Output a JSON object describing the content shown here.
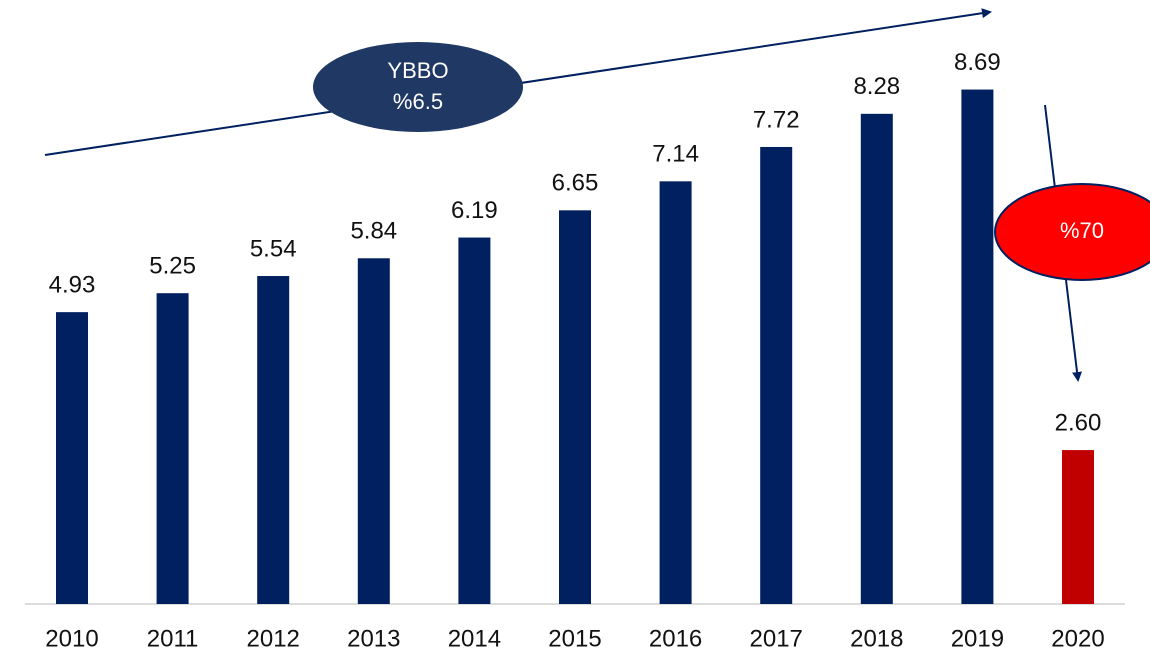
{
  "chart_data": {
    "type": "bar",
    "categories": [
      "2010",
      "2011",
      "2012",
      "2013",
      "2014",
      "2015",
      "2016",
      "2017",
      "2018",
      "2019",
      "2020"
    ],
    "values": [
      4.93,
      5.25,
      5.54,
      5.84,
      6.19,
      6.65,
      7.14,
      7.72,
      8.28,
      8.69,
      2.6
    ],
    "value_labels": [
      "4.93",
      "5.25",
      "5.54",
      "5.84",
      "6.19",
      "6.65",
      "7.14",
      "7.72",
      "8.28",
      "8.69",
      "2.60"
    ],
    "colors": [
      "#002060",
      "#002060",
      "#002060",
      "#002060",
      "#002060",
      "#002060",
      "#002060",
      "#002060",
      "#002060",
      "#002060",
      "#c00000"
    ],
    "ylim": [
      0,
      10
    ],
    "annotations": [
      [
        "YBBO",
        "%6.5"
      ],
      [
        "%70"
      ]
    ]
  }
}
